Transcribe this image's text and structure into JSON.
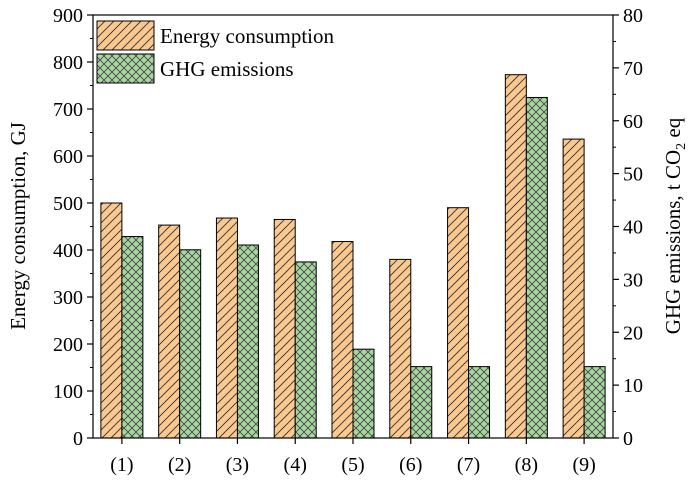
{
  "chart_data": {
    "type": "bar",
    "categories": [
      "(1)",
      "(2)",
      "(3)",
      "(4)",
      "(5)",
      "(6)",
      "(7)",
      "(8)",
      "(9)"
    ],
    "series": [
      {
        "name": "Energy consumption",
        "axis": "left",
        "values": [
          500,
          453,
          468,
          465,
          418,
          380,
          490,
          773,
          636
        ],
        "color": "#fbc98f",
        "pattern": "diagonal-hatch"
      },
      {
        "name": "GHG emissions",
        "axis": "right",
        "values": [
          38.1,
          35.6,
          36.5,
          33.3,
          16.8,
          13.5,
          13.5,
          64.4,
          13.5
        ],
        "color": "#a8d6a0",
        "pattern": "cross-hatch"
      }
    ],
    "ylabel": "Energy consumption, GJ",
    "ylabel_right": {
      "prefix": "GHG emissions, t CO",
      "subscript": "2",
      "suffix": " eq"
    },
    "ylim": [
      0,
      900
    ],
    "ylim_right": [
      0,
      80
    ],
    "yticks": [
      "0",
      "100",
      "200",
      "300",
      "400",
      "500",
      "600",
      "700",
      "800",
      "900"
    ],
    "yticks_right": [
      "0",
      "10",
      "20",
      "30",
      "40",
      "50",
      "60",
      "70",
      "80"
    ],
    "legend_position": "top-left",
    "grid": false
  }
}
